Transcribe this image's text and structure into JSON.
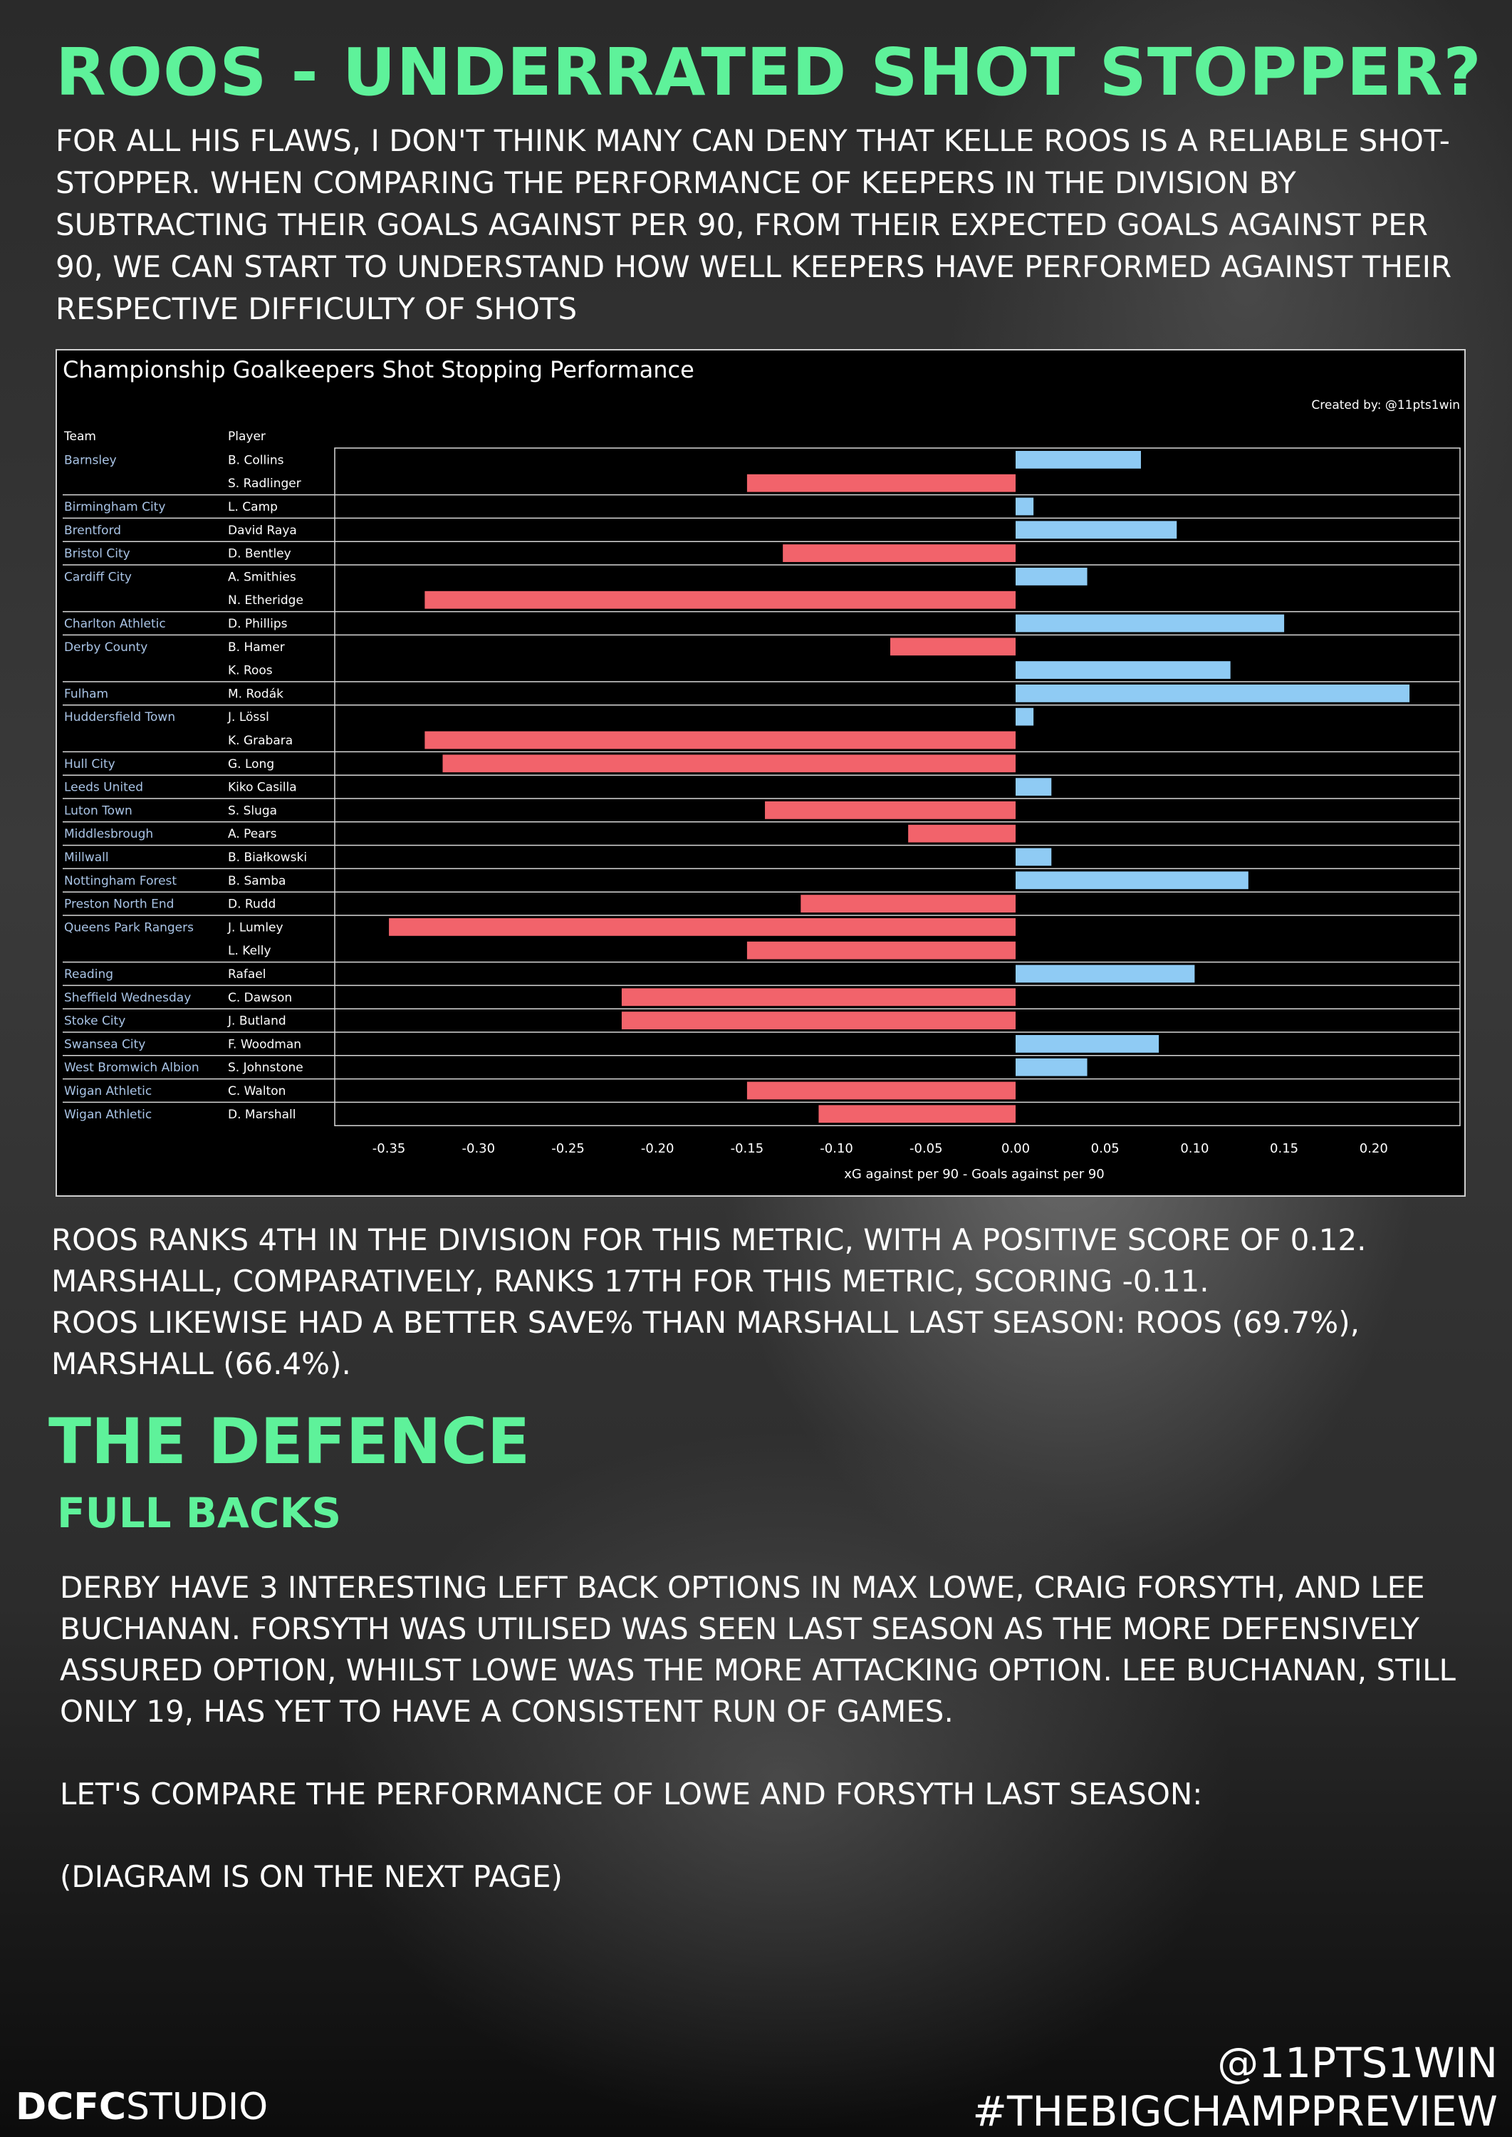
{
  "title": "ROOS - UNDERRATED SHOT STOPPER?",
  "intro": "FOR ALL HIS FLAWS, I DON'T THINK MANY CAN DENY THAT KELLE ROOS IS A RELIABLE SHOT-STOPPER. WHEN COMPARING THE PERFORMANCE OF KEEPERS IN THE DIVISION BY SUBTRACTING THEIR GOALS AGAINST PER 90, FROM THEIR EXPECTED GOALS AGAINST PER 90, WE CAN START TO UNDERSTAND HOW WELL KEEPERS HAVE PERFORMED AGAINST THEIR RESPECTIVE DIFFICULTY OF SHOTS",
  "chart_data": {
    "type": "bar",
    "orientation": "horizontal",
    "title": "Championship Goalkeepers Shot Stopping Performance",
    "credit": "Created by: @11pts1win",
    "team_header": "Team",
    "player_header": "Player",
    "xlabel": "xG against per 90 - Goals against per 90",
    "xlim": [
      -0.37,
      0.25
    ],
    "xticks": [
      -0.35,
      -0.3,
      -0.25,
      -0.2,
      -0.15,
      -0.1,
      -0.05,
      0.0,
      0.05,
      0.1,
      0.15,
      0.2
    ],
    "xtick_labels": [
      "-0.35",
      "-0.30",
      "-0.25",
      "-0.20",
      "-0.15",
      "-0.10",
      "-0.05",
      "0.00",
      "0.05",
      "0.10",
      "0.15",
      "0.20"
    ],
    "colors": {
      "positive": "#8fcbf4",
      "negative": "#f2636b",
      "team_text": "#a9c4e6",
      "background": "#000000"
    },
    "rows": [
      {
        "team": "Barnsley",
        "player": "B. Collins",
        "value": 0.07
      },
      {
        "team": "",
        "player": "S. Radlinger",
        "value": -0.15
      },
      {
        "team": "Birmingham City",
        "player": "L. Camp",
        "value": 0.01
      },
      {
        "team": "Brentford",
        "player": "David Raya",
        "value": 0.09
      },
      {
        "team": "Bristol City",
        "player": "D. Bentley",
        "value": -0.13
      },
      {
        "team": "Cardiff City",
        "player": "A. Smithies",
        "value": 0.04
      },
      {
        "team": "",
        "player": "N. Etheridge",
        "value": -0.33
      },
      {
        "team": "Charlton Athletic",
        "player": "D. Phillips",
        "value": 0.15
      },
      {
        "team": "Derby County",
        "player": "B. Hamer",
        "value": -0.07
      },
      {
        "team": "",
        "player": "K. Roos",
        "value": 0.12
      },
      {
        "team": "Fulham",
        "player": "M. Rodák",
        "value": 0.22
      },
      {
        "team": "Huddersfield Town",
        "player": "J. Lössl",
        "value": 0.01
      },
      {
        "team": "",
        "player": "K. Grabara",
        "value": -0.33
      },
      {
        "team": "Hull City",
        "player": "G. Long",
        "value": -0.32
      },
      {
        "team": "Leeds United",
        "player": "Kiko Casilla",
        "value": 0.02
      },
      {
        "team": "Luton Town",
        "player": "S. Sluga",
        "value": -0.14
      },
      {
        "team": "Middlesbrough",
        "player": "A. Pears",
        "value": -0.06
      },
      {
        "team": "Millwall",
        "player": "B. Białkowski",
        "value": 0.02
      },
      {
        "team": "Nottingham Forest",
        "player": "B. Samba",
        "value": 0.13
      },
      {
        "team": "Preston North End",
        "player": "D. Rudd",
        "value": -0.12
      },
      {
        "team": "Queens Park Rangers",
        "player": "J. Lumley",
        "value": -0.35
      },
      {
        "team": "",
        "player": "L. Kelly",
        "value": -0.15
      },
      {
        "team": "Reading",
        "player": "Rafael",
        "value": 0.1
      },
      {
        "team": "Sheffield Wednesday",
        "player": "C. Dawson",
        "value": -0.22
      },
      {
        "team": "Stoke City",
        "player": "J. Butland",
        "value": -0.22
      },
      {
        "team": "Swansea City",
        "player": "F. Woodman",
        "value": 0.08
      },
      {
        "team": "West Bromwich Albion",
        "player": "S. Johnstone",
        "value": 0.04
      },
      {
        "team": "Wigan Athletic",
        "player": "C. Walton",
        "value": -0.15
      },
      {
        "team": "Wigan Athletic",
        "player": "D. Marshall",
        "value": -0.11
      }
    ]
  },
  "stats": [
    "ROOS RANKS 4TH IN THE DIVISION FOR THIS METRIC, WITH A POSITIVE SCORE OF 0.12.",
    "MARSHALL, COMPARATIVELY, RANKS 17TH FOR THIS METRIC, SCORING -0.11.",
    "ROOS LIKEWISE HAD A BETTER SAVE% THAN MARSHALL LAST SEASON: ROOS (69.7%),",
    "MARSHALL (66.4%)."
  ],
  "section_title": "THE DEFENCE",
  "subsection_title": "FULL BACKS",
  "body": [
    "DERBY HAVE 3 INTERESTING LEFT BACK OPTIONS IN MAX LOWE, CRAIG FORSYTH, AND LEE BUCHANAN. FORSYTH WAS UTILISED WAS SEEN LAST SEASON AS THE MORE DEFENSIVELY ASSURED OPTION, WHILST LOWE WAS THE MORE ATTACKING OPTION. LEE BUCHANAN, STILL ONLY 19, HAS YET TO HAVE A CONSISTENT RUN OF GAMES.",
    "LET'S COMPARE THE PERFORMANCE OF LOWE AND FORSYTH LAST SEASON:",
    "(DIAGRAM IS ON THE NEXT PAGE)"
  ],
  "footer": {
    "logo_bold": "DCFC",
    "logo_light": "STUDIO",
    "handle": "@11PTS1WIN",
    "hashtag": "#THEBIGCHAMPPREVIEW"
  }
}
